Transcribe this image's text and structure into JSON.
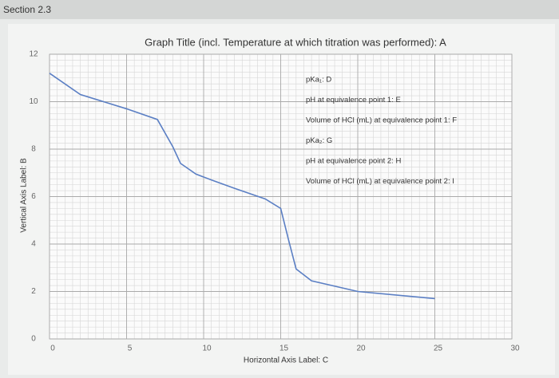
{
  "section": "Section 2.3",
  "chart_data": {
    "type": "line",
    "title": "Graph Title (incl. Temperature at which titration was performed): A",
    "x_label": "Horizontal Axis Label: C",
    "y_label": "Vertical Axis Label: B",
    "annotations": [
      "pKa₁: D",
      "pH at equivalence point 1: E",
      "Volume of HCl (mL) at equivalence point 1: F",
      "pKa₂: G",
      "pH at equivalence point 2: H",
      "Volume of HCl (mL) at equivalence point 2: I"
    ],
    "series": [
      {
        "color": "#5b7fc4",
        "x": [
          0,
          2,
          5,
          7,
          8,
          8.5,
          9.5,
          10.5,
          12,
          14,
          15,
          15.5,
          16,
          17,
          20,
          25
        ],
        "values": [
          11.2,
          10.3,
          9.7,
          9.25,
          8.1,
          7.4,
          6.95,
          6.7,
          6.35,
          5.9,
          5.5,
          4.2,
          2.95,
          2.45,
          2.0,
          1.7
        ]
      }
    ],
    "xlim": [
      0,
      30
    ],
    "xticks": [
      0,
      5,
      10,
      15,
      20,
      25,
      30
    ],
    "ylim": [
      0,
      12
    ],
    "yticks": [
      0,
      2,
      4,
      6,
      8,
      10,
      12
    ],
    "grid": true
  }
}
